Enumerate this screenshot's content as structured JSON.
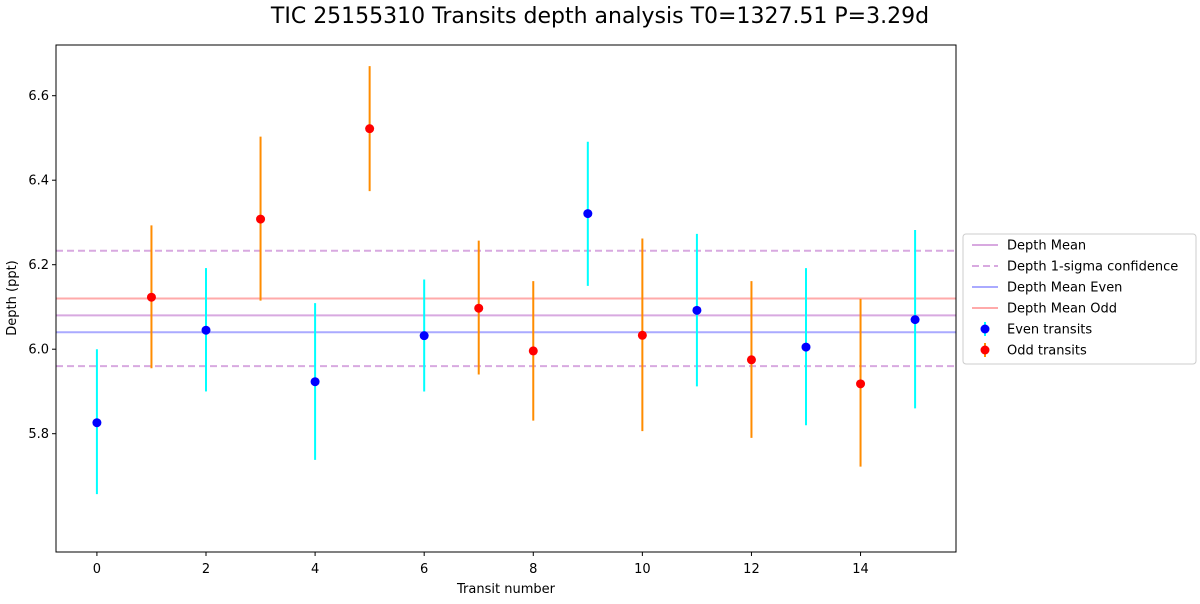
{
  "chart_data": {
    "type": "scatter",
    "title": "TIC 25155310 Transits depth analysis T0=1327.51 P=3.29d",
    "xlabel": "Transit number",
    "ylabel": "Depth (ppt)",
    "xlim": [
      -0.75,
      15.75
    ],
    "ylim": [
      5.52,
      6.72
    ],
    "xticks": [
      0,
      2,
      4,
      6,
      8,
      10,
      12,
      14
    ],
    "yticks": [
      5.8,
      6.0,
      6.2,
      6.4,
      6.6
    ],
    "grid": false,
    "legend_position": "center-right-outside",
    "lines": [
      {
        "name": "Depth Mean",
        "y": 6.08,
        "style": "solid",
        "color": "#d8a9e0"
      },
      {
        "name": "Depth 1-sigma confidence",
        "y": [
          5.96,
          6.233
        ],
        "style": "dashed",
        "color": "#d8a9e0"
      },
      {
        "name": "Depth Mean Even",
        "y": 6.04,
        "style": "solid",
        "color": "#aaaaff"
      },
      {
        "name": "Depth Mean Odd",
        "y": 6.12,
        "style": "solid",
        "color": "#ffaaaa"
      }
    ],
    "series": [
      {
        "name": "Even transits",
        "marker_color": "#0000ff",
        "error_color": "#00ffff",
        "points": [
          {
            "x": 0,
            "y": 5.826,
            "yerr": [
              5.657,
              6.0
            ]
          },
          {
            "x": 2,
            "y": 6.045,
            "yerr": [
              5.9,
              6.192
            ]
          },
          {
            "x": 4,
            "y": 5.923,
            "yerr": [
              5.738,
              6.109
            ]
          },
          {
            "x": 6,
            "y": 6.032,
            "yerr": [
              5.9,
              6.165
            ]
          },
          {
            "x": 9,
            "y": 6.321,
            "yerr": [
              6.15,
              6.491
            ]
          },
          {
            "x": 11,
            "y": 6.092,
            "yerr": [
              5.912,
              6.273
            ]
          },
          {
            "x": 13,
            "y": 6.005,
            "yerr": [
              5.82,
              6.192
            ]
          },
          {
            "x": 15,
            "y": 6.07,
            "yerr": [
              5.86,
              6.282
            ]
          }
        ]
      },
      {
        "name": "Odd transits",
        "marker_color": "#ff0000",
        "error_color": "#ff8c00",
        "points": [
          {
            "x": 1,
            "y": 6.123,
            "yerr": [
              5.955,
              6.293
            ]
          },
          {
            "x": 3,
            "y": 6.308,
            "yerr": [
              6.115,
              6.503
            ]
          },
          {
            "x": 5,
            "y": 6.522,
            "yerr": [
              6.374,
              6.67
            ]
          },
          {
            "x": 7,
            "y": 6.097,
            "yerr": [
              5.94,
              6.257
            ]
          },
          {
            "x": 8,
            "y": 5.996,
            "yerr": [
              5.831,
              6.161
            ]
          },
          {
            "x": 10,
            "y": 6.033,
            "yerr": [
              5.806,
              6.262
            ]
          },
          {
            "x": 12,
            "y": 5.975,
            "yerr": [
              5.79,
              6.161
            ]
          },
          {
            "x": 14,
            "y": 5.918,
            "yerr": [
              5.722,
              6.119
            ]
          }
        ]
      }
    ]
  }
}
